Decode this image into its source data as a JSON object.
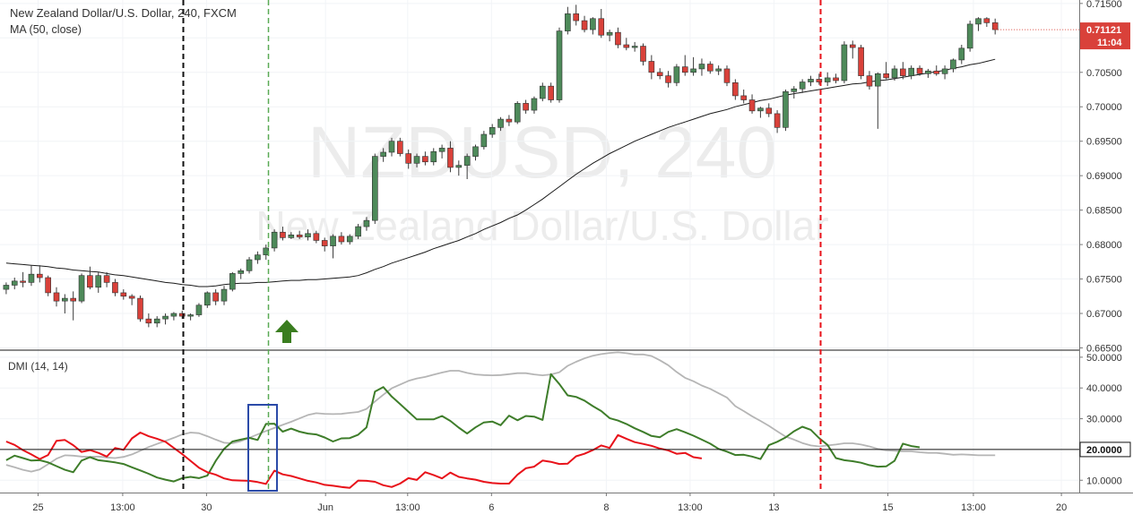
{
  "header": {
    "title": "New Zealand Dollar/U.S. Dollar, 240, FXCM",
    "ma_label": "MA (50, close)",
    "dmi_label": "DMI (14, 14)"
  },
  "watermark": {
    "symbol": "NZDUSD, 240",
    "name": "New Zealand Dollar/U.S. Dollar"
  },
  "price_axis": {
    "ticks": [
      "0.71500",
      "0.71000",
      "0.70500",
      "0.70000",
      "0.69500",
      "0.69000",
      "0.68500",
      "0.68000",
      "0.67500",
      "0.67000",
      "0.66500"
    ],
    "current_price": "0.71121",
    "countdown": "11:04"
  },
  "dmi_axis": {
    "ticks": [
      "50.0000",
      "40.0000",
      "30.0000",
      "10.0000"
    ],
    "level_label": "20.0000"
  },
  "time_axis": {
    "labels": [
      "25",
      "13:00",
      "30",
      "Jun",
      "13:00",
      "6",
      "8",
      "13:00",
      "13",
      "15",
      "13:00",
      "20"
    ]
  },
  "colors": {
    "up": "#4e8a5a",
    "down": "#d9413a",
    "ma": "#1a1a1a",
    "adx": "#b5b5b5",
    "plus_di": "#3e7d2a",
    "minus_di": "#e8121a",
    "arrow": "#3a7d1f",
    "box": "#2b4aa8",
    "line_black": "#111111",
    "line_green": "#5aaa55",
    "line_red": "#e8121a",
    "price_tag": "#d9413a"
  },
  "chart_data": {
    "type": "candlestick",
    "symbol": "NZDUSD",
    "timeframe": "240",
    "source": "FXCM",
    "price_range": [
      0.6648,
      0.7155
    ],
    "dmi_range": [
      6,
      52
    ],
    "candles": [
      {
        "o": 0.6735,
        "h": 0.6745,
        "l": 0.6728,
        "c": 0.6741
      },
      {
        "o": 0.6741,
        "h": 0.6752,
        "l": 0.6735,
        "c": 0.6747
      },
      {
        "o": 0.6747,
        "h": 0.676,
        "l": 0.6738,
        "c": 0.6745
      },
      {
        "o": 0.6745,
        "h": 0.677,
        "l": 0.674,
        "c": 0.6757
      },
      {
        "o": 0.6757,
        "h": 0.677,
        "l": 0.6745,
        "c": 0.6752
      },
      {
        "o": 0.6752,
        "h": 0.6755,
        "l": 0.6725,
        "c": 0.673
      },
      {
        "o": 0.673,
        "h": 0.6738,
        "l": 0.671,
        "c": 0.6718
      },
      {
        "o": 0.6718,
        "h": 0.6728,
        "l": 0.67,
        "c": 0.6722
      },
      {
        "o": 0.6722,
        "h": 0.6732,
        "l": 0.669,
        "c": 0.6718
      },
      {
        "o": 0.6718,
        "h": 0.6758,
        "l": 0.6715,
        "c": 0.6755
      },
      {
        "o": 0.6755,
        "h": 0.6768,
        "l": 0.6735,
        "c": 0.6738
      },
      {
        "o": 0.6738,
        "h": 0.676,
        "l": 0.673,
        "c": 0.6755
      },
      {
        "o": 0.6755,
        "h": 0.676,
        "l": 0.6738,
        "c": 0.6745
      },
      {
        "o": 0.6745,
        "h": 0.675,
        "l": 0.6725,
        "c": 0.673
      },
      {
        "o": 0.673,
        "h": 0.6735,
        "l": 0.672,
        "c": 0.6725
      },
      {
        "o": 0.6725,
        "h": 0.6728,
        "l": 0.6712,
        "c": 0.6722
      },
      {
        "o": 0.6722,
        "h": 0.6726,
        "l": 0.6688,
        "c": 0.6692
      },
      {
        "o": 0.6692,
        "h": 0.67,
        "l": 0.668,
        "c": 0.6686
      },
      {
        "o": 0.6686,
        "h": 0.6696,
        "l": 0.668,
        "c": 0.6692
      },
      {
        "o": 0.6692,
        "h": 0.67,
        "l": 0.6684,
        "c": 0.6696
      },
      {
        "o": 0.6696,
        "h": 0.6702,
        "l": 0.669,
        "c": 0.67
      },
      {
        "o": 0.67,
        "h": 0.6704,
        "l": 0.6692,
        "c": 0.6696
      },
      {
        "o": 0.6696,
        "h": 0.67,
        "l": 0.669,
        "c": 0.6698
      },
      {
        "o": 0.6698,
        "h": 0.6715,
        "l": 0.6695,
        "c": 0.6712
      },
      {
        "o": 0.6712,
        "h": 0.6732,
        "l": 0.6708,
        "c": 0.673
      },
      {
        "o": 0.673,
        "h": 0.6735,
        "l": 0.6712,
        "c": 0.6718
      },
      {
        "o": 0.6718,
        "h": 0.674,
        "l": 0.6712,
        "c": 0.6735
      },
      {
        "o": 0.6735,
        "h": 0.676,
        "l": 0.6732,
        "c": 0.6758
      },
      {
        "o": 0.6758,
        "h": 0.6765,
        "l": 0.675,
        "c": 0.6762
      },
      {
        "o": 0.6762,
        "h": 0.6782,
        "l": 0.6758,
        "c": 0.6778
      },
      {
        "o": 0.6778,
        "h": 0.679,
        "l": 0.6772,
        "c": 0.6785
      },
      {
        "o": 0.6785,
        "h": 0.68,
        "l": 0.6778,
        "c": 0.6795
      },
      {
        "o": 0.6795,
        "h": 0.6822,
        "l": 0.679,
        "c": 0.6818
      },
      {
        "o": 0.6818,
        "h": 0.6826,
        "l": 0.6806,
        "c": 0.681
      },
      {
        "o": 0.681,
        "h": 0.6818,
        "l": 0.6808,
        "c": 0.6814
      },
      {
        "o": 0.6814,
        "h": 0.682,
        "l": 0.6808,
        "c": 0.6811
      },
      {
        "o": 0.6811,
        "h": 0.6822,
        "l": 0.6806,
        "c": 0.6816
      },
      {
        "o": 0.6816,
        "h": 0.682,
        "l": 0.6802,
        "c": 0.6806
      },
      {
        "o": 0.6806,
        "h": 0.681,
        "l": 0.679,
        "c": 0.6798
      },
      {
        "o": 0.6798,
        "h": 0.6815,
        "l": 0.678,
        "c": 0.6812
      },
      {
        "o": 0.6812,
        "h": 0.6818,
        "l": 0.68,
        "c": 0.6804
      },
      {
        "o": 0.6804,
        "h": 0.6815,
        "l": 0.68,
        "c": 0.6812
      },
      {
        "o": 0.6812,
        "h": 0.683,
        "l": 0.6808,
        "c": 0.6826
      },
      {
        "o": 0.6826,
        "h": 0.684,
        "l": 0.682,
        "c": 0.6835
      },
      {
        "o": 0.6835,
        "h": 0.6932,
        "l": 0.683,
        "c": 0.6928
      },
      {
        "o": 0.6928,
        "h": 0.694,
        "l": 0.692,
        "c": 0.6934
      },
      {
        "o": 0.6934,
        "h": 0.6955,
        "l": 0.6928,
        "c": 0.695
      },
      {
        "o": 0.695,
        "h": 0.6955,
        "l": 0.6928,
        "c": 0.6932
      },
      {
        "o": 0.6932,
        "h": 0.6938,
        "l": 0.691,
        "c": 0.6918
      },
      {
        "o": 0.6918,
        "h": 0.6932,
        "l": 0.6912,
        "c": 0.6928
      },
      {
        "o": 0.6928,
        "h": 0.6935,
        "l": 0.6915,
        "c": 0.692
      },
      {
        "o": 0.692,
        "h": 0.694,
        "l": 0.6915,
        "c": 0.6935
      },
      {
        "o": 0.6935,
        "h": 0.6945,
        "l": 0.6925,
        "c": 0.694
      },
      {
        "o": 0.694,
        "h": 0.695,
        "l": 0.6905,
        "c": 0.6912
      },
      {
        "o": 0.6912,
        "h": 0.6922,
        "l": 0.69,
        "c": 0.6915
      },
      {
        "o": 0.6915,
        "h": 0.6932,
        "l": 0.6895,
        "c": 0.6928
      },
      {
        "o": 0.6928,
        "h": 0.6945,
        "l": 0.6922,
        "c": 0.6942
      },
      {
        "o": 0.6942,
        "h": 0.6965,
        "l": 0.6938,
        "c": 0.696
      },
      {
        "o": 0.696,
        "h": 0.6975,
        "l": 0.6955,
        "c": 0.697
      },
      {
        "o": 0.697,
        "h": 0.6985,
        "l": 0.6965,
        "c": 0.6982
      },
      {
        "o": 0.6982,
        "h": 0.6988,
        "l": 0.6972,
        "c": 0.6978
      },
      {
        "o": 0.6978,
        "h": 0.7008,
        "l": 0.6975,
        "c": 0.7005
      },
      {
        "o": 0.7005,
        "h": 0.701,
        "l": 0.699,
        "c": 0.6995
      },
      {
        "o": 0.6995,
        "h": 0.7015,
        "l": 0.699,
        "c": 0.7012
      },
      {
        "o": 0.7012,
        "h": 0.7035,
        "l": 0.7008,
        "c": 0.703
      },
      {
        "o": 0.703,
        "h": 0.7035,
        "l": 0.7006,
        "c": 0.701
      },
      {
        "o": 0.701,
        "h": 0.7115,
        "l": 0.7006,
        "c": 0.711
      },
      {
        "o": 0.711,
        "h": 0.7145,
        "l": 0.7105,
        "c": 0.7135
      },
      {
        "o": 0.7135,
        "h": 0.7148,
        "l": 0.7118,
        "c": 0.7125
      },
      {
        "o": 0.7125,
        "h": 0.7132,
        "l": 0.7108,
        "c": 0.7112
      },
      {
        "o": 0.7112,
        "h": 0.713,
        "l": 0.7105,
        "c": 0.7128
      },
      {
        "o": 0.7128,
        "h": 0.7142,
        "l": 0.71,
        "c": 0.7104
      },
      {
        "o": 0.7104,
        "h": 0.7112,
        "l": 0.7095,
        "c": 0.7108
      },
      {
        "o": 0.7108,
        "h": 0.7115,
        "l": 0.7085,
        "c": 0.709
      },
      {
        "o": 0.709,
        "h": 0.71,
        "l": 0.7082,
        "c": 0.7086
      },
      {
        "o": 0.7086,
        "h": 0.7094,
        "l": 0.708,
        "c": 0.7088
      },
      {
        "o": 0.7088,
        "h": 0.7092,
        "l": 0.706,
        "c": 0.7066
      },
      {
        "o": 0.7066,
        "h": 0.7075,
        "l": 0.704,
        "c": 0.705
      },
      {
        "o": 0.705,
        "h": 0.7056,
        "l": 0.704,
        "c": 0.7045
      },
      {
        "o": 0.7045,
        "h": 0.7052,
        "l": 0.7028,
        "c": 0.7035
      },
      {
        "o": 0.7035,
        "h": 0.7062,
        "l": 0.703,
        "c": 0.7058
      },
      {
        "o": 0.7058,
        "h": 0.7075,
        "l": 0.7045,
        "c": 0.705
      },
      {
        "o": 0.705,
        "h": 0.7072,
        "l": 0.7045,
        "c": 0.7055
      },
      {
        "o": 0.7055,
        "h": 0.707,
        "l": 0.7045,
        "c": 0.7062
      },
      {
        "o": 0.7062,
        "h": 0.7066,
        "l": 0.7048,
        "c": 0.7052
      },
      {
        "o": 0.7052,
        "h": 0.706,
        "l": 0.7046,
        "c": 0.7055
      },
      {
        "o": 0.7055,
        "h": 0.706,
        "l": 0.703,
        "c": 0.7035
      },
      {
        "o": 0.7035,
        "h": 0.704,
        "l": 0.701,
        "c": 0.7016
      },
      {
        "o": 0.7016,
        "h": 0.7025,
        "l": 0.7005,
        "c": 0.701
      },
      {
        "o": 0.701,
        "h": 0.7018,
        "l": 0.699,
        "c": 0.6994
      },
      {
        "o": 0.6994,
        "h": 0.7,
        "l": 0.6984,
        "c": 0.6998
      },
      {
        "o": 0.6998,
        "h": 0.7005,
        "l": 0.6985,
        "c": 0.699
      },
      {
        "o": 0.699,
        "h": 0.6995,
        "l": 0.6962,
        "c": 0.697
      },
      {
        "o": 0.697,
        "h": 0.7025,
        "l": 0.6965,
        "c": 0.7022
      },
      {
        "o": 0.7022,
        "h": 0.703,
        "l": 0.7012,
        "c": 0.7026
      },
      {
        "o": 0.7026,
        "h": 0.704,
        "l": 0.702,
        "c": 0.7036
      },
      {
        "o": 0.7036,
        "h": 0.7045,
        "l": 0.703,
        "c": 0.704
      },
      {
        "o": 0.704,
        "h": 0.7048,
        "l": 0.7032,
        "c": 0.7036
      },
      {
        "o": 0.7036,
        "h": 0.705,
        "l": 0.703,
        "c": 0.7042
      },
      {
        "o": 0.7042,
        "h": 0.7048,
        "l": 0.7034,
        "c": 0.7038
      },
      {
        "o": 0.7038,
        "h": 0.7095,
        "l": 0.7034,
        "c": 0.709
      },
      {
        "o": 0.709,
        "h": 0.7096,
        "l": 0.707,
        "c": 0.7086
      },
      {
        "o": 0.7086,
        "h": 0.709,
        "l": 0.704,
        "c": 0.7045
      },
      {
        "o": 0.7045,
        "h": 0.7052,
        "l": 0.7025,
        "c": 0.703
      },
      {
        "o": 0.703,
        "h": 0.705,
        "l": 0.6968,
        "c": 0.7048
      },
      {
        "o": 0.7048,
        "h": 0.7065,
        "l": 0.704,
        "c": 0.7042
      },
      {
        "o": 0.7042,
        "h": 0.706,
        "l": 0.7038,
        "c": 0.7055
      },
      {
        "o": 0.7055,
        "h": 0.7065,
        "l": 0.704,
        "c": 0.7045
      },
      {
        "o": 0.7045,
        "h": 0.706,
        "l": 0.704,
        "c": 0.7056
      },
      {
        "o": 0.7056,
        "h": 0.706,
        "l": 0.7045,
        "c": 0.7048
      },
      {
        "o": 0.7048,
        "h": 0.7055,
        "l": 0.7042,
        "c": 0.7052
      },
      {
        "o": 0.7052,
        "h": 0.706,
        "l": 0.7045,
        "c": 0.7048
      },
      {
        "o": 0.7048,
        "h": 0.706,
        "l": 0.704,
        "c": 0.7055
      },
      {
        "o": 0.7055,
        "h": 0.707,
        "l": 0.705,
        "c": 0.7068
      },
      {
        "o": 0.7068,
        "h": 0.709,
        "l": 0.7062,
        "c": 0.7085
      },
      {
        "o": 0.7085,
        "h": 0.7125,
        "l": 0.708,
        "c": 0.712
      },
      {
        "o": 0.712,
        "h": 0.713,
        "l": 0.711,
        "c": 0.7128
      },
      {
        "o": 0.7128,
        "h": 0.713,
        "l": 0.7116,
        "c": 0.7122
      },
      {
        "o": 0.7122,
        "h": 0.7128,
        "l": 0.7105,
        "c": 0.7112
      }
    ],
    "ma_50": [
      0.6773,
      0.6772,
      0.6771,
      0.677,
      0.6769,
      0.6768,
      0.6766,
      0.6765,
      0.6763,
      0.6762,
      0.6761,
      0.676,
      0.6758,
      0.6756,
      0.6755,
      0.6753,
      0.6751,
      0.6749,
      0.6747,
      0.6745,
      0.6744,
      0.6742,
      0.6741,
      0.6739,
      0.6739,
      0.674,
      0.6742,
      0.6743,
      0.6744,
      0.6744,
      0.6745,
      0.6745,
      0.6746,
      0.6747,
      0.6748,
      0.6748,
      0.6749,
      0.6749,
      0.675,
      0.6751,
      0.6752,
      0.6753,
      0.6755,
      0.6759,
      0.6764,
      0.6768,
      0.6773,
      0.6777,
      0.6781,
      0.6785,
      0.6789,
      0.6794,
      0.6798,
      0.6802,
      0.6806,
      0.6811,
      0.6816,
      0.6822,
      0.6827,
      0.6832,
      0.6838,
      0.6843,
      0.685,
      0.6858,
      0.6866,
      0.6875,
      0.6884,
      0.6893,
      0.6902,
      0.691,
      0.6918,
      0.6925,
      0.6932,
      0.6938,
      0.6944,
      0.695,
      0.6955,
      0.696,
      0.6965,
      0.697,
      0.6974,
      0.6978,
      0.6982,
      0.6986,
      0.699,
      0.6993,
      0.6996,
      0.7,
      0.7003,
      0.7006,
      0.7009,
      0.7011,
      0.7014,
      0.7017,
      0.7019,
      0.7021,
      0.7023,
      0.7025,
      0.7027,
      0.7029,
      0.7031,
      0.7033,
      0.7034,
      0.7036,
      0.7038,
      0.7039,
      0.7041,
      0.7043,
      0.7045,
      0.7047,
      0.7049,
      0.7051,
      0.7053,
      0.7056,
      0.7058,
      0.7061,
      0.7063,
      0.7066,
      0.7069
    ],
    "adx": [
      15,
      14.2,
      13.4,
      12.8,
      13.5,
      15.2,
      17,
      18.1,
      18,
      17.7,
      17.6,
      17.7,
      17.4,
      17.2,
      17.6,
      18.4,
      19.6,
      20.8,
      21.8,
      22.8,
      23.8,
      24.9,
      25.5,
      25.3,
      24.3,
      23.2,
      22.2,
      22,
      22.7,
      23.8,
      24.9,
      26,
      27,
      28,
      29,
      30.1,
      31.2,
      31.8,
      31.6,
      31.5,
      31.6,
      31.9,
      32.2,
      33.2,
      35.6,
      37.8,
      39.9,
      41.1,
      42.3,
      43.1,
      43.6,
      44.3,
      45,
      45.6,
      45.6,
      44.9,
      44.4,
      44.2,
      44.1,
      44.2,
      44.5,
      44.8,
      44.8,
      44.4,
      44.1,
      44.4,
      45.1,
      47.2,
      48.5,
      49.6,
      50.5,
      51,
      51.4,
      51.6,
      51.3,
      50.9,
      50.9,
      50.4,
      49,
      47.4,
      45.2,
      43.3,
      42.2,
      40.8,
      39.7,
      38.3,
      36.9,
      34.1,
      32.5,
      30.8,
      29.3,
      27.7,
      25.9,
      24.2,
      23.2,
      22.1,
      21.3,
      21,
      21.3,
      21.6,
      22,
      22,
      21.6,
      21,
      20.2,
      19.7,
      19.6,
      19.4,
      19.4,
      19.1,
      18.9,
      18.9,
      18.6,
      18.3,
      18.4,
      18.3,
      18.1,
      18.1,
      18.1
    ],
    "plus_di": [
      16.5,
      18,
      17.2,
      16.4,
      16.5,
      15.8,
      14.6,
      13.4,
      12.6,
      16.4,
      17.5,
      16.5,
      16.2,
      15.8,
      15.3,
      14.2,
      13.2,
      12.1,
      10.9,
      10.2,
      9.6,
      10.7,
      11.1,
      10.7,
      11.5,
      16.3,
      20.2,
      22.6,
      23.2,
      23.8,
      23.1,
      28.3,
      28.4,
      25.8,
      26.8,
      25.8,
      25.2,
      24.9,
      23.9,
      22.6,
      23.6,
      23.7,
      24.8,
      27.2,
      38.8,
      40.3,
      37.2,
      34.8,
      32.3,
      29.8,
      29.8,
      29.8,
      30.9,
      29.3,
      27.1,
      25.2,
      27.2,
      28.8,
      29.1,
      27.9,
      31,
      29.5,
      30.9,
      30.7,
      29.6,
      44.5,
      41.3,
      37.6,
      37.1,
      35.9,
      34.1,
      32.5,
      30.2,
      29.4,
      28.3,
      26.9,
      25.7,
      24.4,
      24,
      25.7,
      26.6,
      25.6,
      24.5,
      23.2,
      21.9,
      20.2,
      19.3,
      18.2,
      18.3,
      17.7,
      16.9,
      21.4,
      22.5,
      23.9,
      25.9,
      27.4,
      26.4,
      23.7,
      21.5,
      17.2,
      16.5,
      16.2,
      15.7,
      14.9,
      14.4,
      14.5,
      16.3,
      21.9,
      21.1,
      20.7
    ],
    "minus_di": [
      22.6,
      21.5,
      19.8,
      18.4,
      16.9,
      18.2,
      22.8,
      23.1,
      21.4,
      19.2,
      19.8,
      18.9,
      17.7,
      20.5,
      19.9,
      23.6,
      25.5,
      24.3,
      23.5,
      22.5,
      20.5,
      18.5,
      16.3,
      14.1,
      12.6,
      11.8,
      10.6,
      10,
      9.9,
      9.8,
      9.4,
      8.8,
      13.1,
      11.9,
      11.4,
      10.6,
      9.8,
      9.3,
      8.5,
      8.2,
      7.8,
      7.5,
      9.9,
      9.8,
      9.5,
      8.4,
      7.8,
      8.9,
      10.7,
      10.1,
      12.6,
      11.7,
      10.6,
      12.5,
      11.1,
      10.6,
      10.2,
      9.5,
      9.1,
      8.9,
      8.9,
      11.8,
      13.9,
      14.4,
      16.4,
      16,
      15.3,
      15.4,
      17.8,
      18.6,
      19.8,
      21.3,
      20.5,
      24.7,
      23.5,
      22.4,
      21.8,
      21.2,
      20.3,
      19.7,
      18.6,
      18.9,
      17.5,
      17.1
    ]
  }
}
